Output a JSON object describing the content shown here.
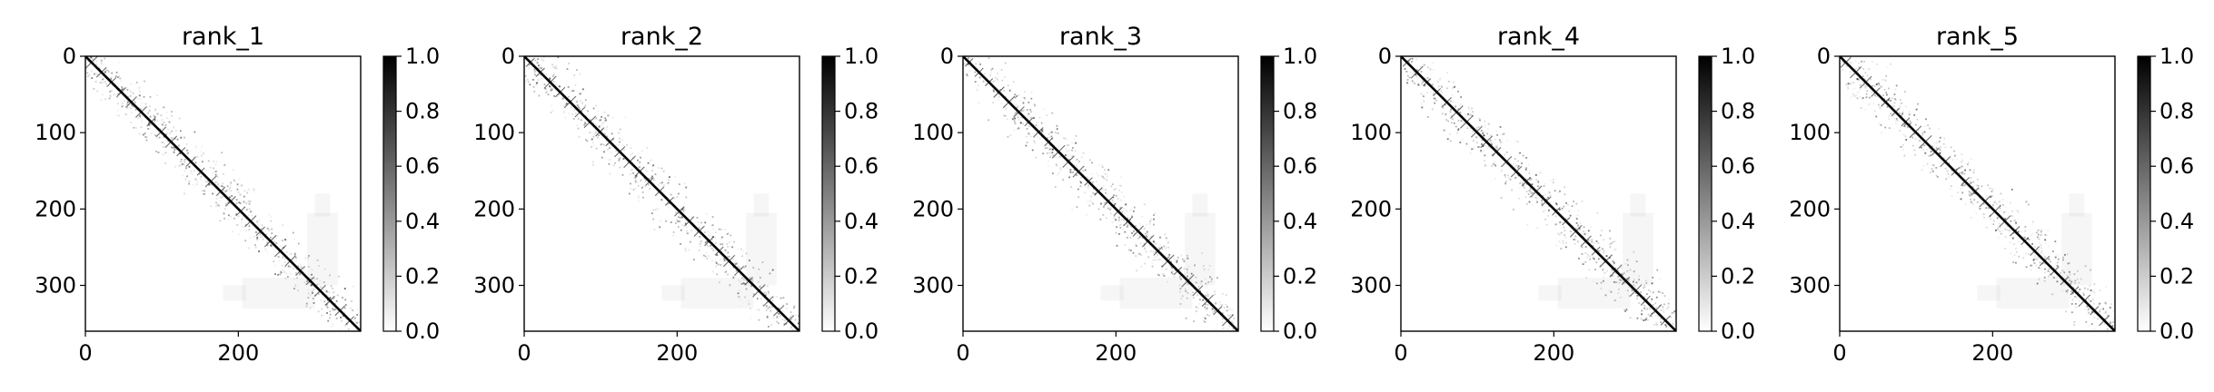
{
  "chart_data": [
    {
      "type": "heatmap",
      "title": "rank_1",
      "colormap": "gray_r",
      "matrix_size": 360,
      "x_ticks": [
        "0",
        "200"
      ],
      "y_ticks": [
        "0",
        "100",
        "200",
        "300"
      ],
      "xlim": [
        0,
        360
      ],
      "ylim": [
        360,
        0
      ],
      "colorbar": {
        "range": [
          0.0,
          1.0
        ],
        "ticks": [
          "0.0",
          "0.2",
          "0.4",
          "0.6",
          "0.8",
          "1.0"
        ]
      }
    },
    {
      "type": "heatmap",
      "title": "rank_2",
      "colormap": "gray_r",
      "matrix_size": 360,
      "x_ticks": [
        "0",
        "200"
      ],
      "y_ticks": [
        "0",
        "100",
        "200",
        "300"
      ],
      "xlim": [
        0,
        360
      ],
      "ylim": [
        360,
        0
      ],
      "colorbar": {
        "range": [
          0.0,
          1.0
        ],
        "ticks": [
          "0.0",
          "0.2",
          "0.4",
          "0.6",
          "0.8",
          "1.0"
        ]
      }
    },
    {
      "type": "heatmap",
      "title": "rank_3",
      "colormap": "gray_r",
      "matrix_size": 360,
      "x_ticks": [
        "0",
        "200"
      ],
      "y_ticks": [
        "0",
        "100",
        "200",
        "300"
      ],
      "xlim": [
        0,
        360
      ],
      "ylim": [
        360,
        0
      ],
      "colorbar": {
        "range": [
          0.0,
          1.0
        ],
        "ticks": [
          "0.0",
          "0.2",
          "0.4",
          "0.6",
          "0.8",
          "1.0"
        ]
      }
    },
    {
      "type": "heatmap",
      "title": "rank_4",
      "colormap": "gray_r",
      "matrix_size": 360,
      "x_ticks": [
        "0",
        "200"
      ],
      "y_ticks": [
        "0",
        "100",
        "200",
        "300"
      ],
      "xlim": [
        0,
        360
      ],
      "ylim": [
        360,
        0
      ],
      "colorbar": {
        "range": [
          0.0,
          1.0
        ],
        "ticks": [
          "0.0",
          "0.2",
          "0.4",
          "0.6",
          "0.8",
          "1.0"
        ]
      }
    },
    {
      "type": "heatmap",
      "title": "rank_5",
      "colormap": "gray_r",
      "matrix_size": 360,
      "x_ticks": [
        "0",
        "200"
      ],
      "y_ticks": [
        "0",
        "100",
        "200",
        "300"
      ],
      "xlim": [
        0,
        360
      ],
      "ylim": [
        360,
        0
      ],
      "colorbar": {
        "range": [
          0.0,
          1.0
        ],
        "ticks": [
          "0.0",
          "0.2",
          "0.4",
          "0.6",
          "0.8",
          "1.0"
        ]
      }
    }
  ]
}
